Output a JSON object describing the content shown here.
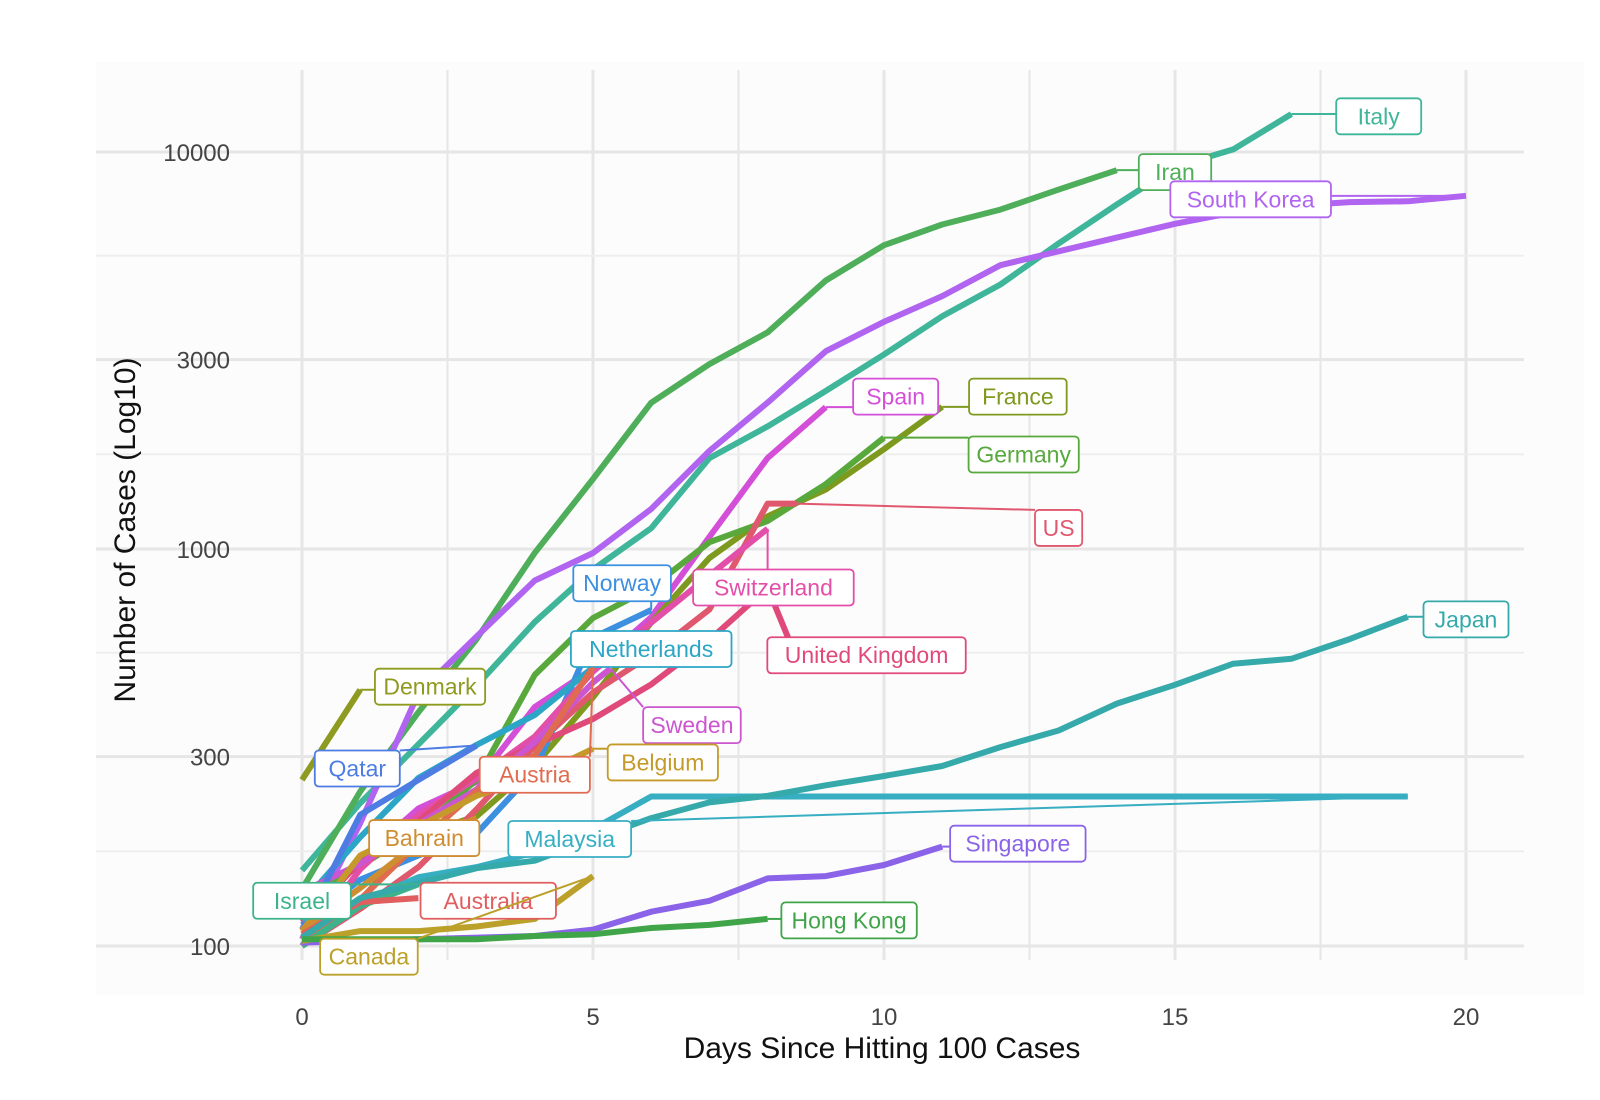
{
  "chart_data": {
    "type": "line",
    "xlabel": "Days Since Hitting 100 Cases",
    "ylabel": "Number of Cases (Log10)",
    "y_scale": "log10",
    "xlim": [
      -0.5,
      20.5
    ],
    "ylim": [
      88,
      15000
    ],
    "x_ticks": [
      0,
      5,
      10,
      15,
      20
    ],
    "y_ticks": [
      100,
      300,
      1000,
      3000,
      10000
    ],
    "grid": true,
    "legend": "none (direct line labels)",
    "series": [
      {
        "name": "Italy",
        "color": "#3fb59a",
        "label_at": [
          18.5,
          12300
        ],
        "x": [
          0,
          1,
          2,
          3,
          4,
          5,
          6,
          7,
          8,
          9,
          10,
          11,
          12,
          13,
          14,
          15,
          16,
          17
        ],
        "y": [
          155,
          229,
          322,
          453,
          655,
          888,
          1128,
          1694,
          2036,
          2502,
          3089,
          3858,
          4636,
          5883,
          7375,
          9172,
          10149,
          12462
        ]
      },
      {
        "name": "Iran",
        "color": "#4eae5a",
        "label_at": [
          15.0,
          8900
        ],
        "x": [
          0,
          1,
          2,
          3,
          4,
          5,
          6,
          7,
          8,
          9,
          10,
          11,
          12,
          13,
          14
        ],
        "y": [
          139,
          245,
          388,
          593,
          978,
          1501,
          2336,
          2922,
          3513,
          4747,
          5823,
          6566,
          7161,
          8042,
          9000
        ]
      },
      {
        "name": "South Korea",
        "color": "#b064f0",
        "label_at": [
          16.3,
          7600
        ],
        "x": [
          0,
          1,
          2,
          3,
          4,
          5,
          6,
          7,
          8,
          9,
          10,
          11,
          12,
          13,
          14,
          15,
          16,
          17,
          18,
          19,
          20
        ],
        "y": [
          104,
          204,
          433,
          602,
          833,
          977,
          1261,
          1766,
          2337,
          3150,
          3736,
          4335,
          5186,
          5621,
          6088,
          6593,
          7041,
          7314,
          7478,
          7513,
          7755
        ]
      },
      {
        "name": "Spain",
        "color": "#d44fd8",
        "label_at": [
          10.2,
          2420
        ],
        "x": [
          0,
          1,
          2,
          3,
          4,
          5,
          6,
          7,
          8,
          9
        ],
        "y": [
          120,
          165,
          222,
          259,
          400,
          500,
          673,
          1073,
          1695,
          2277
        ]
      },
      {
        "name": "France",
        "color": "#7e9a1e",
        "label_at": [
          12.3,
          2420
        ],
        "x": [
          0,
          1,
          2,
          3,
          4,
          5,
          6,
          7,
          8,
          9,
          10,
          11
        ],
        "y": [
          100,
          130,
          191,
          212,
          285,
          423,
          653,
          949,
          1209,
          1412,
          1784,
          2281
        ]
      },
      {
        "name": "Germany",
        "color": "#58a83c",
        "label_at": [
          12.4,
          1730
        ],
        "x": [
          0,
          1,
          2,
          3,
          4,
          5,
          6,
          7,
          8,
          9,
          10
        ],
        "y": [
          130,
          159,
          196,
          262,
          482,
          670,
          799,
          1040,
          1176,
          1457,
          1908
        ]
      },
      {
        "name": "US",
        "color": "#e0586e",
        "label_at": [
          13.0,
          1130
        ],
        "x": [
          0,
          1,
          2,
          3,
          4,
          5,
          6,
          7,
          8,
          8.5
        ],
        "y": [
          100,
          124,
          158,
          221,
          319,
          435,
          541,
          704,
          1301,
          1301
        ]
      },
      {
        "name": "Norway",
        "color": "#3d8fdf",
        "label_at": [
          5.5,
          820
        ],
        "x": [
          0,
          1,
          2,
          3,
          4,
          5,
          6
        ],
        "y": [
          113,
          147,
          169,
          192,
          277,
          598,
          702
        ]
      },
      {
        "name": "Switzerland",
        "color": "#e34fa8",
        "label_at": [
          8.1,
          800
        ],
        "x": [
          0,
          1,
          2,
          3,
          4,
          5,
          6,
          7,
          8
        ],
        "y": [
          100,
          156,
          214,
          264,
          337,
          491,
          652,
          858,
          1125
        ]
      },
      {
        "name": "Netherlands",
        "color": "#2ba6c6",
        "label_at": [
          6.0,
          560
        ],
        "x": [
          0,
          1,
          2,
          3,
          4,
          5
        ],
        "y": [
          128,
          188,
          265,
          321,
          382,
          503
        ]
      },
      {
        "name": "United Kingdom",
        "color": "#e04a7a",
        "label_at": [
          9.7,
          540
        ],
        "x": [
          0,
          1,
          2,
          3,
          4,
          5,
          6,
          7,
          8,
          8.5
        ],
        "y": [
          115,
          163,
          206,
          273,
          321,
          373,
          456,
          590,
          798,
          530
        ]
      },
      {
        "name": "Sweden",
        "color": "#cc55d0",
        "label_at": [
          6.7,
          360
        ],
        "x": [
          0,
          1,
          2,
          3,
          4,
          5,
          5.3
        ],
        "y": [
          137,
          161,
          203,
          248,
          326,
          461,
          500
        ]
      },
      {
        "name": "Denmark",
        "color": "#8e9a20",
        "label_at": [
          2.2,
          450
        ],
        "x": [
          0,
          1
        ],
        "y": [
          262,
          442
        ]
      },
      {
        "name": "Qatar",
        "color": "#4d7ce3",
        "label_at": [
          0.95,
          280
        ],
        "x": [
          0,
          1,
          2,
          3
        ],
        "y": [
          110,
          214,
          262,
          320
        ]
      },
      {
        "name": "Austria",
        "color": "#e06c50",
        "label_at": [
          4.0,
          270
        ],
        "x": [
          0,
          1,
          2,
          3,
          4,
          5
        ],
        "y": [
          104,
          131,
          182,
          246,
          302,
          504
        ]
      },
      {
        "name": "Belgium",
        "color": "#c59a2a",
        "label_at": [
          6.2,
          290
        ],
        "x": [
          0,
          1,
          2,
          3,
          4,
          5
        ],
        "y": [
          109,
          169,
          200,
          239,
          267,
          314
        ]
      },
      {
        "name": "Bahrain",
        "color": "#cf8d31",
        "label_at": [
          2.1,
          187
        ],
        "x": [
          0,
          1,
          2,
          3
        ],
        "y": [
          110,
          140,
          182,
          210
        ]
      },
      {
        "name": "Malaysia",
        "color": "#37aec2",
        "label_at": [
          4.6,
          186
        ],
        "x": [
          0,
          1,
          2,
          3,
          4,
          5,
          6,
          7,
          8,
          9,
          10,
          11,
          12,
          13,
          14,
          15,
          16,
          17,
          18,
          19
        ],
        "y": [
          117,
          129,
          149,
          158,
          172,
          197,
          238,
          238,
          238,
          238,
          238,
          238,
          238,
          238,
          238,
          238,
          238,
          238,
          238,
          238
        ]
      },
      {
        "name": "Israel",
        "color": "#3db38b",
        "label_at": [
          0.0,
          130
        ],
        "x": [
          0,
          1,
          2
        ],
        "y": [
          100,
          126,
          143
        ]
      },
      {
        "name": "Australia",
        "color": "#e05e5e",
        "label_at": [
          3.2,
          130
        ],
        "x": [
          0,
          1,
          2
        ],
        "y": [
          107,
          129,
          132
        ]
      },
      {
        "name": "Japan",
        "color": "#36a9aa",
        "label_at": [
          20.0,
          665
        ],
        "x": [
          0,
          1,
          2,
          3,
          4,
          5,
          6,
          7,
          8,
          9,
          10,
          11,
          12,
          13,
          14,
          15,
          16,
          17,
          18,
          19
        ],
        "y": [
          105,
          132,
          144,
          157,
          164,
          186,
          210,
          230,
          239,
          254,
          268,
          284,
          317,
          349,
          408,
          455,
          514,
          529,
          593,
          675
        ]
      },
      {
        "name": "Singapore",
        "color": "#8a63e8",
        "label_at": [
          12.3,
          181
        ],
        "x": [
          0,
          1,
          2,
          3,
          4,
          5,
          6,
          7,
          8,
          9,
          10,
          11
        ],
        "y": [
          102,
          103,
          104,
          105,
          106,
          110,
          122,
          130,
          148,
          150,
          160,
          178
        ]
      },
      {
        "name": "Canada",
        "color": "#bba02a",
        "label_at": [
          1.15,
          94
        ],
        "x": [
          0,
          1,
          2,
          3,
          4,
          5
        ],
        "y": [
          103,
          109,
          109,
          112,
          117,
          150
        ]
      },
      {
        "name": "Hong Kong",
        "color": "#3fa548",
        "label_at": [
          9.4,
          116
        ],
        "x": [
          0,
          1,
          2,
          3,
          4,
          5,
          6,
          7,
          8
        ],
        "y": [
          104,
          104,
          104,
          104,
          106,
          107,
          111,
          113,
          117
        ]
      }
    ]
  }
}
